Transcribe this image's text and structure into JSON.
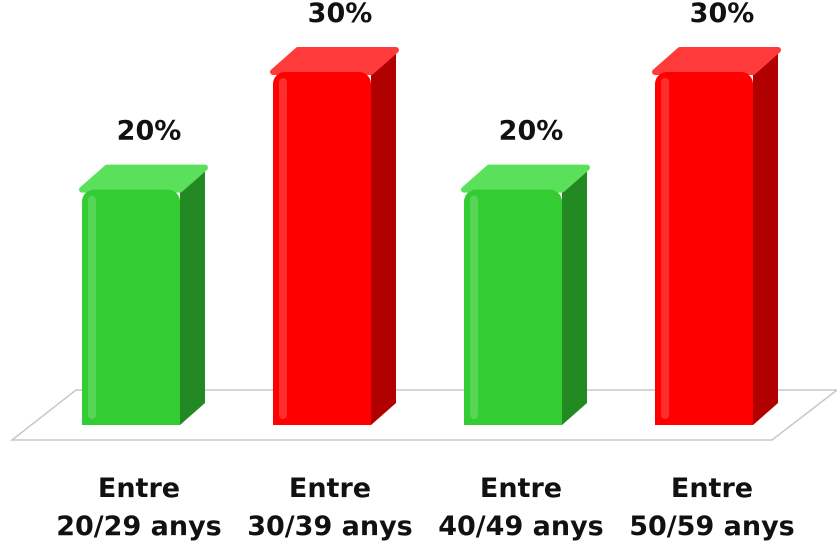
{
  "chart_data": {
    "type": "bar",
    "categories": [
      "Entre\n20/29 anys",
      "Entre\n30/39 anys",
      "Entre\n40/49 anys",
      "Entre\n50/59 anys"
    ],
    "values": [
      20,
      30,
      20,
      30
    ],
    "data_labels": [
      "20%",
      "30%",
      "20%",
      "30%"
    ],
    "colors": [
      "#33cc33",
      "#ff0000",
      "#33cc33",
      "#ff0000"
    ],
    "side_colors": [
      "#238a23",
      "#b00000",
      "#238a23",
      "#b00000"
    ],
    "top_colors": [
      "#5be05b",
      "#ff3a3a",
      "#5be05b",
      "#ff3a3a"
    ],
    "ylim": [
      0,
      30
    ],
    "grid": false,
    "legend": "none",
    "style": "3d"
  }
}
